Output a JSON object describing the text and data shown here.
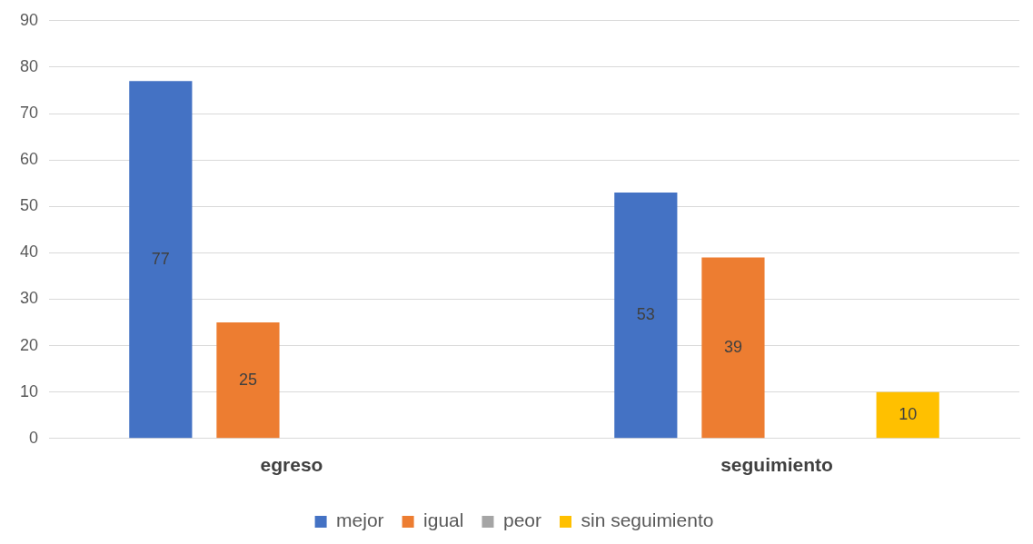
{
  "chart_data": {
    "type": "bar",
    "categories": [
      "egreso",
      "seguimiento"
    ],
    "series": [
      {
        "name": "mejor",
        "color": "#4472c4",
        "values": [
          77,
          53
        ]
      },
      {
        "name": "igual",
        "color": "#ed7d31",
        "values": [
          25,
          39
        ]
      },
      {
        "name": "peor",
        "color": "#a5a5a5",
        "values": [
          null,
          null
        ]
      },
      {
        "name": "sin seguimiento",
        "color": "#ffc000",
        "values": [
          null,
          10
        ]
      }
    ],
    "ylim": [
      0,
      90
    ],
    "yticks": [
      0,
      10,
      20,
      30,
      40,
      50,
      60,
      70,
      80,
      90
    ],
    "grid": "y",
    "legend": "bottom",
    "data_labels": true
  }
}
